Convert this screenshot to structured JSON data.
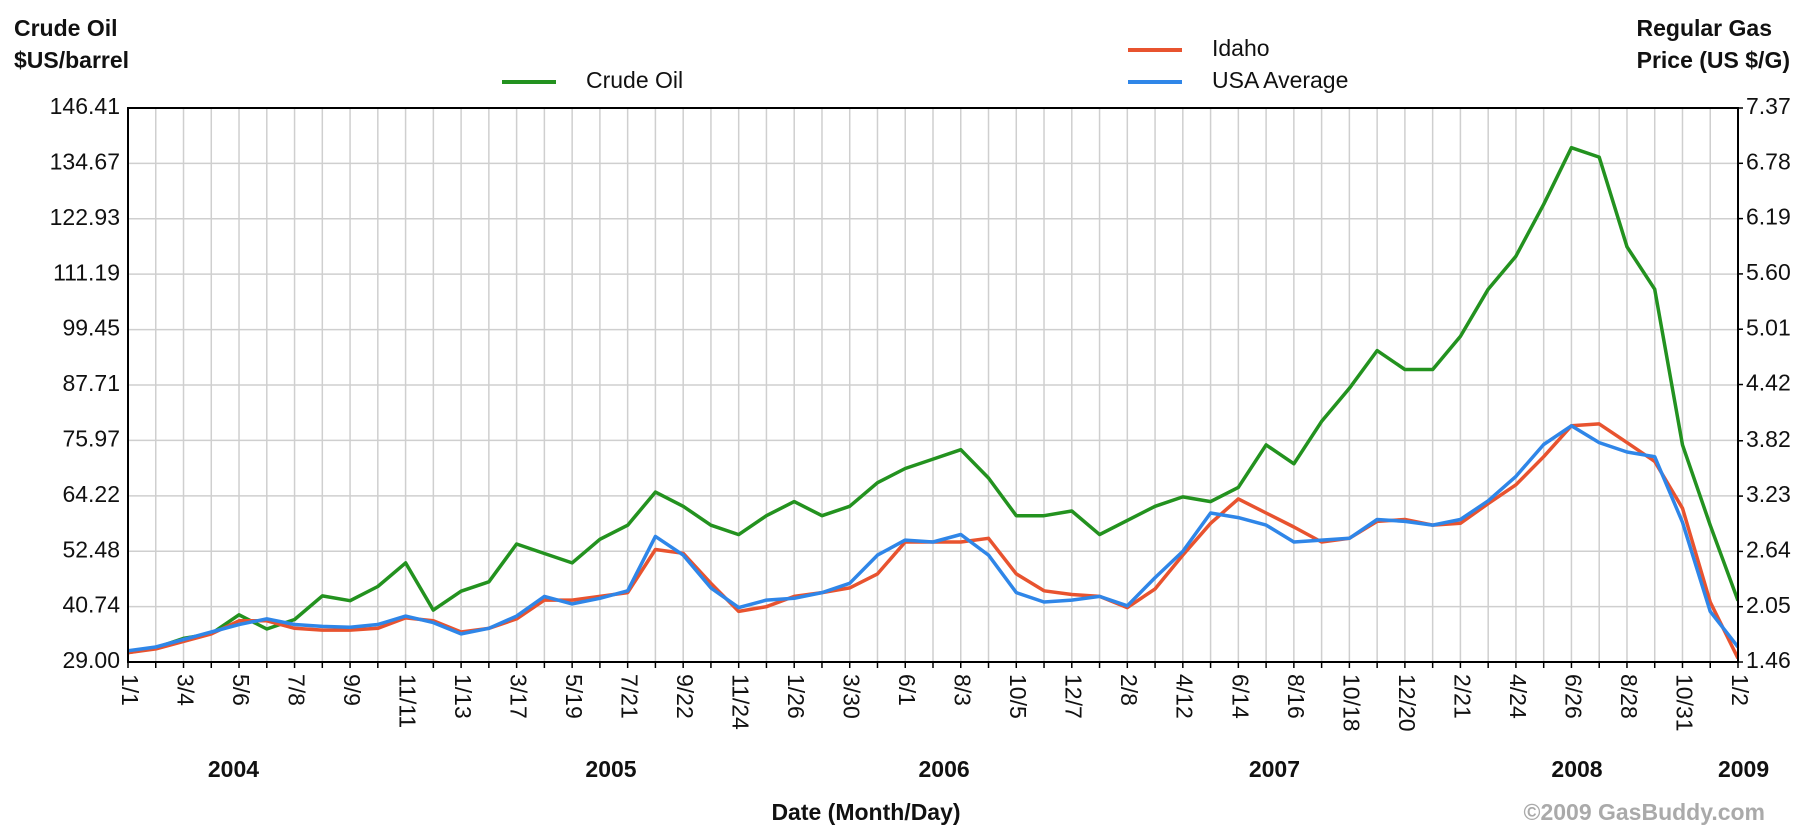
{
  "chart_data": {
    "type": "line",
    "y_label": [
      "Crude Oil",
      "$US/barrel"
    ],
    "y2_label": [
      "Regular Gas",
      "Price (US $/G)"
    ],
    "x_label": "Date (Month/Day)",
    "credit": "©2009 GasBuddy.com",
    "year_labels": [
      "2004",
      "2005",
      "2006",
      "2007",
      "2008",
      "2009"
    ],
    "categories": [
      "1/1",
      null,
      "3/4",
      null,
      "5/6",
      null,
      "7/8",
      null,
      "9/9",
      null,
      "11/11",
      null,
      "1/13",
      null,
      "3/17",
      null,
      "5/19",
      null,
      "7/21",
      null,
      "9/22",
      null,
      "11/24",
      null,
      "1/26",
      null,
      "3/30",
      null,
      "6/1",
      null,
      "8/3",
      null,
      "10/5",
      null,
      "12/7",
      null,
      "2/8",
      null,
      "4/12",
      null,
      "6/14",
      null,
      "8/16",
      null,
      "10/18",
      null,
      "12/20",
      null,
      "2/21",
      null,
      "4/24",
      null,
      "6/26",
      null,
      "8/28",
      null,
      "10/31",
      null,
      "1/2"
    ],
    "ylim": [
      29,
      146.41
    ],
    "yticks": [
      {
        "value": 29,
        "label": "29.00"
      },
      40.74,
      52.48,
      64.22,
      75.97,
      87.71,
      99.45,
      111.19,
      122.93,
      134.67,
      146.41
    ],
    "y2lim": [
      1.46,
      7.37
    ],
    "y2ticks": [
      1.46,
      2.05,
      2.64,
      3.23,
      3.82,
      4.42,
      5.01,
      {
        "value": 5.6,
        "label": "5.60"
      },
      6.19,
      6.78,
      7.37
    ],
    "grid": true,
    "series": [
      {
        "name": "Crude Oil",
        "color": "#23921f",
        "axis": "y",
        "values": [
          31,
          32,
          34,
          35,
          39,
          36,
          38,
          43,
          42,
          45,
          50,
          40,
          44,
          46,
          54,
          52,
          50,
          55,
          58,
          65,
          62,
          58,
          56,
          60,
          63,
          60,
          62,
          67,
          70,
          72,
          74,
          68,
          60,
          60,
          61,
          56,
          59,
          62,
          64,
          63,
          66,
          75,
          71,
          80,
          87,
          95,
          91,
          91,
          98,
          108,
          115,
          126,
          138,
          136,
          117,
          108,
          75,
          58,
          42
        ]
      },
      {
        "name": "Idaho",
        "color": "#e8532f",
        "axis": "y2",
        "values": [
          1.56,
          1.6,
          1.68,
          1.76,
          1.9,
          1.9,
          1.82,
          1.8,
          1.8,
          1.82,
          1.93,
          1.9,
          1.78,
          1.82,
          1.92,
          2.12,
          2.12,
          2.16,
          2.2,
          2.66,
          2.62,
          2.3,
          2.0,
          2.05,
          2.16,
          2.2,
          2.25,
          2.4,
          2.74,
          2.74,
          2.74,
          2.78,
          2.4,
          2.22,
          2.18,
          2.16,
          2.04,
          2.24,
          2.6,
          2.94,
          3.2,
          3.05,
          2.9,
          2.74,
          2.78,
          2.96,
          2.98,
          2.92,
          2.94,
          3.15,
          3.35,
          3.65,
          3.98,
          4.0,
          3.8,
          3.6,
          3.1,
          2.1,
          1.5
        ]
      },
      {
        "name": "USA Average",
        "color": "#2f86e8",
        "axis": "y2",
        "values": [
          1.58,
          1.62,
          1.7,
          1.78,
          1.86,
          1.92,
          1.86,
          1.84,
          1.83,
          1.86,
          1.95,
          1.88,
          1.76,
          1.82,
          1.95,
          2.16,
          2.08,
          2.14,
          2.22,
          2.8,
          2.6,
          2.25,
          2.04,
          2.12,
          2.14,
          2.2,
          2.3,
          2.6,
          2.76,
          2.74,
          2.82,
          2.6,
          2.2,
          2.1,
          2.12,
          2.16,
          2.06,
          2.36,
          2.64,
          3.05,
          3.0,
          2.92,
          2.74,
          2.76,
          2.78,
          2.98,
          2.96,
          2.92,
          2.98,
          3.18,
          3.44,
          3.78,
          3.98,
          3.8,
          3.7,
          3.65,
          2.95,
          2.0,
          1.62
        ]
      }
    ]
  }
}
